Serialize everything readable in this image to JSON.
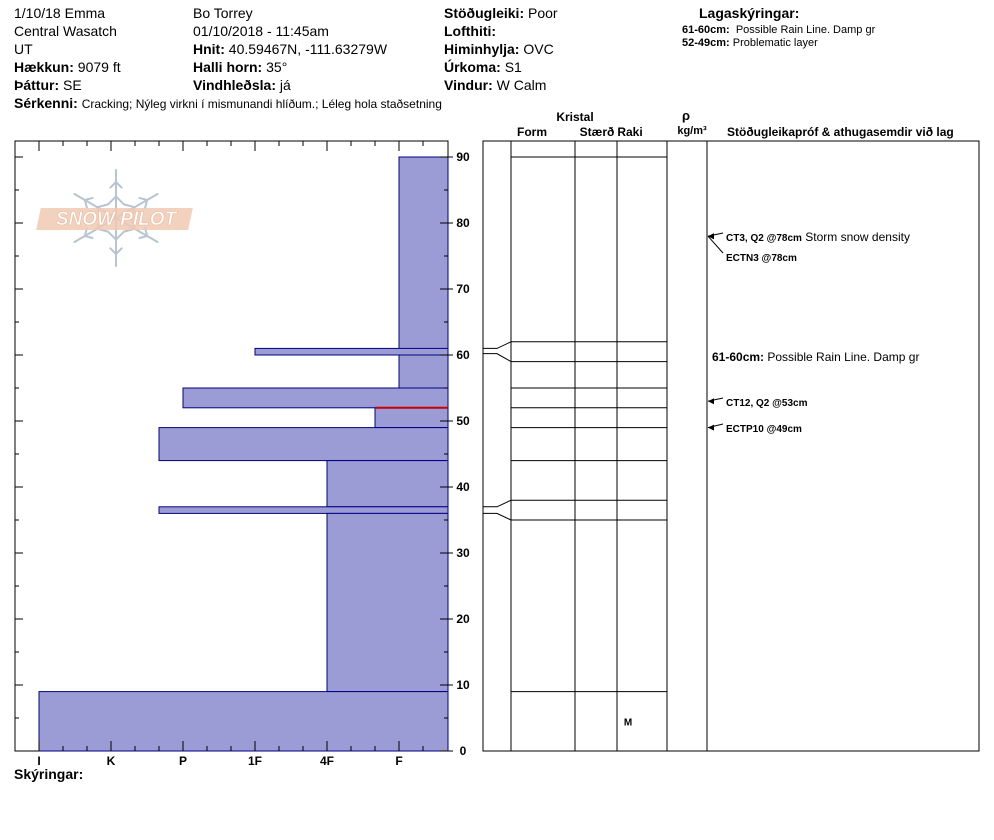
{
  "header": {
    "date_observer": "1/10/18 Emma",
    "range": "Central Wasatch",
    "state": "UT",
    "elevation_label": "Hækkun:",
    "elevation_value": "9079 ft",
    "aspect_label": "Þáttur:",
    "aspect_value": "SE",
    "features_label": "Sérkenni:",
    "features_value": "Cracking;  Nýleg virkni í mismunandi hlíðum.;  Léleg hola staðsetning",
    "observer": "Bo Torrey",
    "datetime": "01/10/2018 - 11:45am",
    "coords_label": "Hnit:",
    "coords_value": "40.59467N, -111.63279W",
    "slope_label": "Halli horn:",
    "slope_value": "35°",
    "wind_loading_label": "Vindhleðsla:",
    "wind_loading_value": "já",
    "stability_label": "Stöðugleiki:",
    "stability_value": "Poor",
    "air_temp_label": "Lofthiti:",
    "sky_label": "Himinhylja:",
    "sky_value": "OVC",
    "precip_label": "Úrkoma:",
    "precip_value": "S1",
    "wind_label": "Vindur:",
    "wind_value": "W Calm",
    "layer_notes_title": "Lagaskýringar:",
    "layer_notes": [
      {
        "range": "61-60cm:",
        "text": "Possible Rain Line. Damp gr"
      },
      {
        "range": "52-49cm:",
        "text": "Problematic layer"
      }
    ],
    "footer_label": "Skýringar:"
  },
  "columns": {
    "crystal": "Kristal",
    "form": "Form",
    "size": "Stærð",
    "moisture": "Raki",
    "rho": "ρ",
    "density_unit": "kg/m³",
    "tests": "Stöðugleikapróf & athugasemdir við lag"
  },
  "logo": {
    "text": "SNOW PILOT"
  },
  "chart_data": {
    "type": "bar",
    "orientation": "horizontal",
    "y_axis": {
      "label": "",
      "range": [
        0,
        92
      ],
      "ticks": [
        0,
        10,
        20,
        30,
        40,
        50,
        60,
        70,
        80,
        90
      ]
    },
    "hardness_scale": [
      "I",
      "K",
      "P",
      "1F",
      "4F",
      "F"
    ],
    "hardness_profile": [
      {
        "top": 90,
        "bottom": 60,
        "hardness": "F"
      },
      {
        "top": 61,
        "bottom": 60,
        "hardness": "1F"
      },
      {
        "top": 60,
        "bottom": 55,
        "hardness": "F"
      },
      {
        "top": 55,
        "bottom": 52,
        "hardness": "P"
      },
      {
        "top": 52,
        "bottom": 49,
        "hardness": "F-"
      },
      {
        "top": 49,
        "bottom": 44,
        "hardness": "K+"
      },
      {
        "top": 44,
        "bottom": 37,
        "hardness": "4F"
      },
      {
        "top": 37,
        "bottom": 36,
        "hardness": "K+"
      },
      {
        "top": 36,
        "bottom": 9,
        "hardness": "4F"
      },
      {
        "top": 9,
        "bottom": 0,
        "hardness": "I"
      }
    ],
    "layer_boundaries": [
      90,
      62,
      59,
      55,
      52,
      49,
      44,
      38,
      35,
      9
    ],
    "critical_layer": 52,
    "moisture_labels": [
      {
        "height": 4.5,
        "text": "M"
      }
    ],
    "stability_tests": [
      {
        "height": 78,
        "code": "CT3, Q2 @78cm",
        "comment": "Storm snow density"
      },
      {
        "height": 78,
        "code": "ECTN3 @78cm",
        "comment": ""
      },
      {
        "height": 60.5,
        "code": "61-60cm:",
        "comment": "Possible Rain Line. Damp gr"
      },
      {
        "height": 53,
        "code": "CT12, Q2 @53cm",
        "comment": ""
      },
      {
        "height": 49,
        "code": "ECTP10 @49cm",
        "comment": ""
      }
    ],
    "colors": {
      "bar_fill": "#9b9bd6",
      "bar_stroke": "#000080",
      "critical": "#cc0000"
    }
  }
}
